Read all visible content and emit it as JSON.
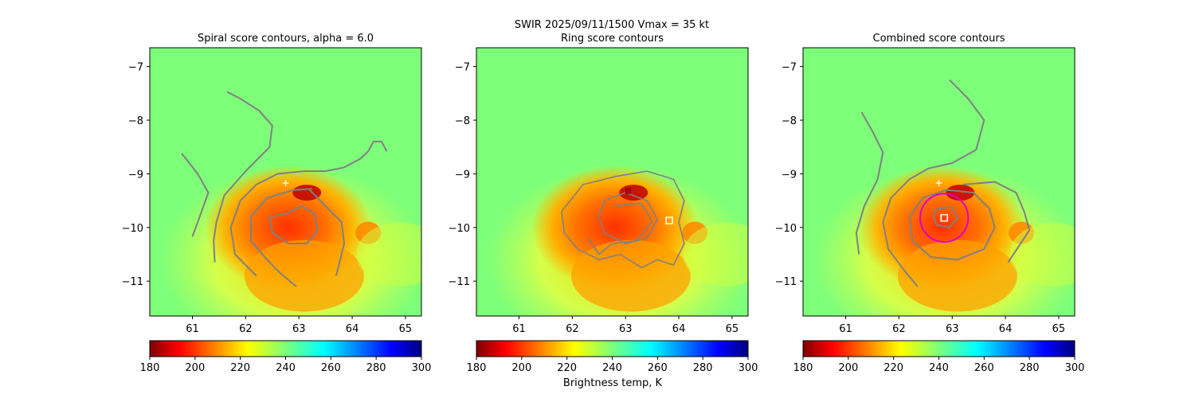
{
  "figure": {
    "suptitle_line1": "SWIR  2025/09/11/1500    Vmax = 35 kt",
    "colorbar_label": "Brightness temp, K"
  },
  "colorbar": {
    "cmap": "jet_r",
    "range": [
      180,
      300
    ],
    "ticks": [
      180,
      200,
      220,
      240,
      260,
      280,
      300
    ],
    "tick_labels": [
      "180",
      "200",
      "220",
      "240",
      "260",
      "280",
      "300"
    ]
  },
  "axes": {
    "xlim": [
      60.2,
      65.3
    ],
    "ylim": [
      -11.65,
      -6.65
    ],
    "xticks": [
      61,
      62,
      63,
      64,
      65
    ],
    "xtick_labels": [
      "61",
      "62",
      "63",
      "64",
      "65"
    ],
    "yticks": [
      -7,
      -8,
      -9,
      -10,
      -11
    ],
    "ytick_labels": [
      "−7",
      "−8",
      "−9",
      "−10",
      "−11"
    ]
  },
  "colors": {
    "background_green": "#7dff7a",
    "contour": "#808080",
    "circle": "#e000c8",
    "marker": "#ffffff"
  },
  "chart_data": [
    {
      "type": "heatmap",
      "title": "Spiral score contours, alpha =  6.0",
      "xlabel": "",
      "ylabel": "",
      "first_guess_marker": {
        "lon": 62.75,
        "lat": -9.17,
        "symbol": "+"
      },
      "contours": [
        [
          [
            60.8,
            -8.62
          ],
          [
            61.1,
            -9.0
          ],
          [
            61.3,
            -9.35
          ],
          [
            61.1,
            -9.9
          ],
          [
            61.0,
            -10.17
          ]
        ],
        [
          [
            61.65,
            -7.47
          ],
          [
            61.9,
            -7.6
          ],
          [
            62.25,
            -7.82
          ],
          [
            62.5,
            -8.1
          ],
          [
            62.45,
            -8.5
          ],
          [
            62.0,
            -8.95
          ],
          [
            61.6,
            -9.4
          ],
          [
            61.45,
            -9.9
          ],
          [
            61.4,
            -10.25
          ],
          [
            61.42,
            -10.65
          ]
        ],
        [
          [
            62.2,
            -10.9
          ],
          [
            61.8,
            -10.5
          ],
          [
            61.72,
            -10.0
          ],
          [
            61.9,
            -9.5
          ],
          [
            62.2,
            -9.2
          ],
          [
            62.6,
            -9.0
          ],
          [
            63.1,
            -8.95
          ],
          [
            63.5,
            -8.95
          ],
          [
            63.85,
            -8.88
          ],
          [
            64.15,
            -8.72
          ],
          [
            64.3,
            -8.58
          ],
          [
            64.4,
            -8.4
          ],
          [
            64.55,
            -8.4
          ],
          [
            64.65,
            -8.58
          ]
        ],
        [
          [
            63.25,
            -9.28
          ],
          [
            62.9,
            -9.3
          ],
          [
            62.4,
            -9.45
          ],
          [
            62.1,
            -9.8
          ],
          [
            62.1,
            -10.25
          ],
          [
            62.4,
            -10.6
          ],
          [
            62.65,
            -10.85
          ],
          [
            62.95,
            -11.1
          ]
        ],
        [
          [
            62.75,
            -9.75
          ],
          [
            63.05,
            -9.6
          ],
          [
            63.3,
            -9.75
          ],
          [
            63.35,
            -10.05
          ],
          [
            63.15,
            -10.3
          ],
          [
            62.8,
            -10.3
          ],
          [
            62.5,
            -10.1
          ],
          [
            62.45,
            -9.8
          ],
          [
            62.75,
            -9.75
          ]
        ],
        [
          [
            63.2,
            -9.3
          ],
          [
            63.5,
            -9.6
          ],
          [
            63.8,
            -9.9
          ],
          [
            63.85,
            -10.3
          ],
          [
            63.75,
            -10.7
          ],
          [
            63.7,
            -10.9
          ]
        ]
      ]
    },
    {
      "type": "heatmap",
      "title": "Ring score contours",
      "xlabel": "",
      "ylabel": "",
      "center_marker": {
        "lon": 63.82,
        "lat": -9.87,
        "symbol": "square"
      },
      "first_guess_marker": {
        "lon": 63.05,
        "lat": -9.32,
        "symbol": "square-small"
      },
      "contours": [
        [
          [
            61.8,
            -9.7
          ],
          [
            62.2,
            -9.2
          ],
          [
            62.8,
            -9.05
          ],
          [
            63.4,
            -8.95
          ],
          [
            63.9,
            -9.1
          ],
          [
            64.1,
            -9.5
          ],
          [
            64.0,
            -9.9
          ],
          [
            64.1,
            -10.3
          ],
          [
            63.9,
            -10.7
          ],
          [
            63.6,
            -10.6
          ],
          [
            63.3,
            -10.75
          ],
          [
            62.9,
            -10.5
          ],
          [
            62.5,
            -10.6
          ],
          [
            62.1,
            -10.4
          ],
          [
            61.85,
            -10.1
          ],
          [
            61.8,
            -9.7
          ]
        ],
        [
          [
            62.6,
            -9.5
          ],
          [
            63.0,
            -9.35
          ],
          [
            63.4,
            -9.5
          ],
          [
            63.6,
            -9.85
          ],
          [
            63.4,
            -10.2
          ],
          [
            63.0,
            -10.3
          ],
          [
            62.6,
            -10.1
          ],
          [
            62.5,
            -9.8
          ],
          [
            62.6,
            -9.5
          ]
        ],
        [
          [
            62.8,
            -9.6
          ],
          [
            63.3,
            -9.55
          ],
          [
            63.5,
            -9.9
          ],
          [
            63.2,
            -10.25
          ],
          [
            62.75,
            -10.3
          ],
          [
            62.5,
            -10.5
          ],
          [
            62.3,
            -10.2
          ]
        ]
      ]
    },
    {
      "type": "heatmap",
      "title": "Combined score contours",
      "xlabel": "",
      "ylabel": "",
      "first_guess_marker": {
        "lon": 62.75,
        "lat": -9.17,
        "symbol": "+"
      },
      "center_marker": {
        "lon": 62.85,
        "lat": -9.82,
        "symbol": "square"
      },
      "radius_circle": {
        "lon": 62.85,
        "lat": -9.82,
        "radius_deg": 0.45
      },
      "contours": [
        [
          [
            61.3,
            -7.85
          ],
          [
            61.5,
            -8.2
          ],
          [
            61.7,
            -8.6
          ],
          [
            61.6,
            -9.1
          ],
          [
            61.35,
            -9.6
          ],
          [
            61.2,
            -10.1
          ],
          [
            61.25,
            -10.5
          ]
        ],
        [
          [
            62.95,
            -7.25
          ],
          [
            63.3,
            -7.6
          ],
          [
            63.6,
            -8.0
          ],
          [
            63.45,
            -8.55
          ],
          [
            63.0,
            -8.8
          ],
          [
            62.55,
            -8.9
          ],
          [
            62.2,
            -9.1
          ],
          [
            61.85,
            -9.45
          ],
          [
            61.7,
            -9.9
          ],
          [
            61.8,
            -10.4
          ],
          [
            62.1,
            -10.8
          ],
          [
            62.35,
            -11.1
          ]
        ],
        [
          [
            62.9,
            -9.3
          ],
          [
            63.4,
            -9.35
          ],
          [
            63.7,
            -9.65
          ],
          [
            63.8,
            -10.0
          ],
          [
            63.6,
            -10.4
          ],
          [
            63.1,
            -10.6
          ],
          [
            62.6,
            -10.55
          ],
          [
            62.25,
            -10.25
          ],
          [
            62.2,
            -9.8
          ],
          [
            62.45,
            -9.45
          ],
          [
            62.9,
            -9.3
          ]
        ],
        [
          [
            63.2,
            -9.2
          ],
          [
            63.8,
            -9.15
          ],
          [
            64.2,
            -9.35
          ],
          [
            64.35,
            -9.7
          ],
          [
            64.45,
            -10.05
          ],
          [
            64.25,
            -10.35
          ],
          [
            64.05,
            -10.65
          ]
        ],
        [
          [
            62.7,
            -9.65
          ],
          [
            63.0,
            -9.62
          ],
          [
            63.1,
            -9.82
          ],
          [
            62.95,
            -10.0
          ],
          [
            62.7,
            -9.95
          ],
          [
            62.65,
            -9.78
          ],
          [
            62.7,
            -9.65
          ]
        ]
      ]
    }
  ]
}
